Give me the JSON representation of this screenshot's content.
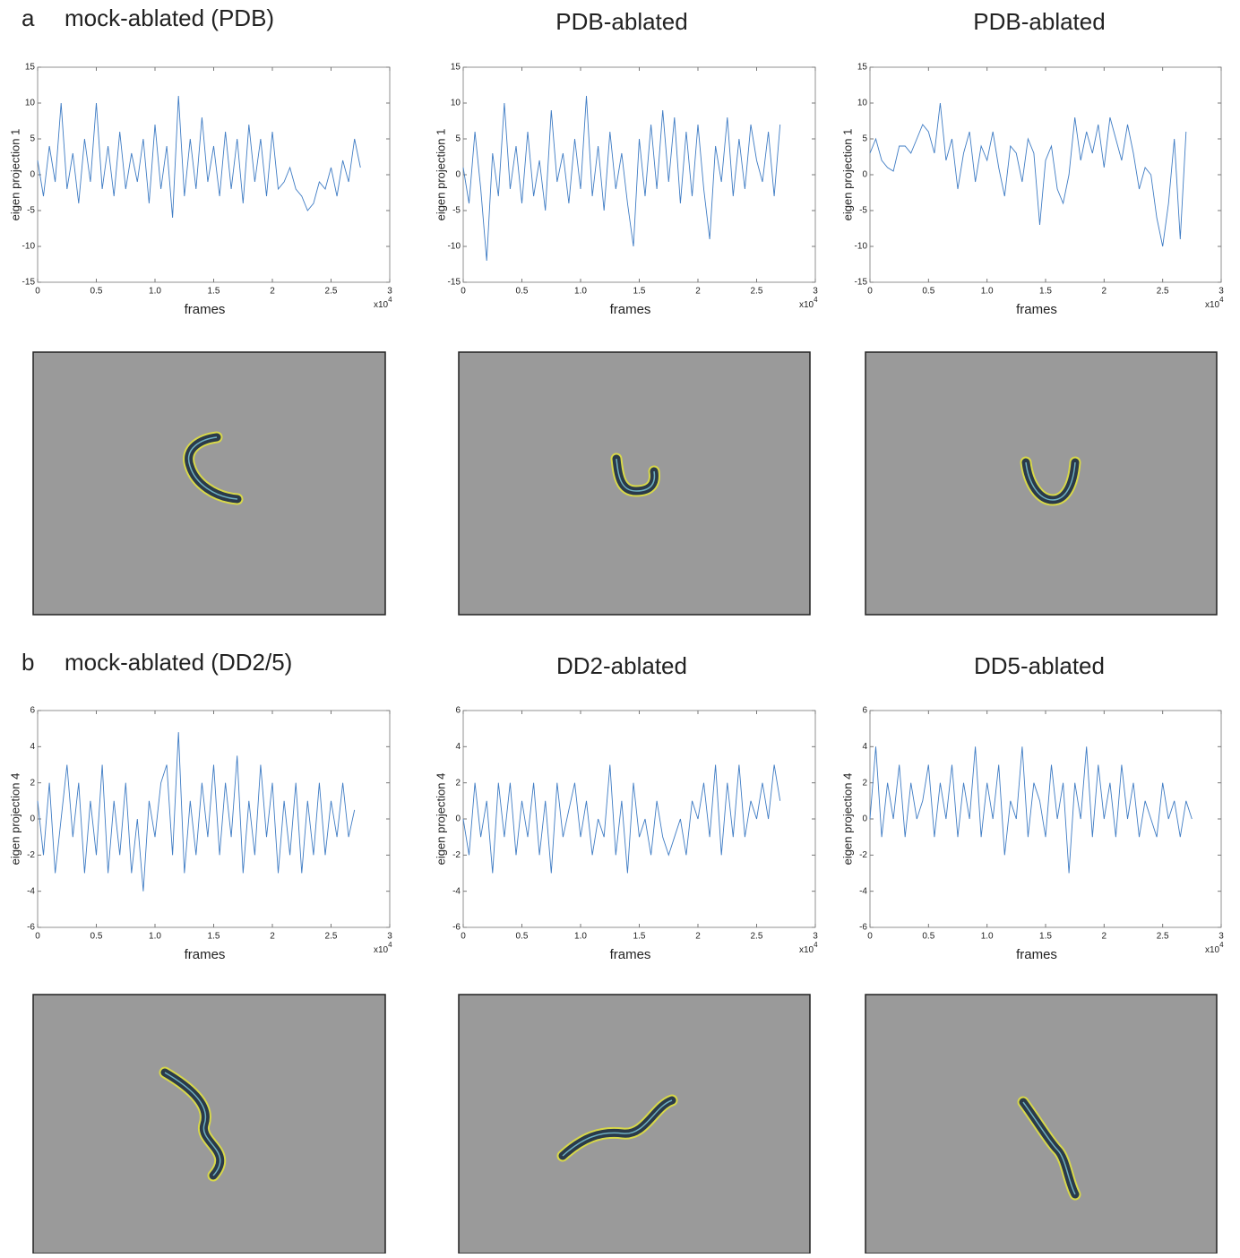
{
  "chart_data": [
    {
      "type": "line",
      "panel_label": "a",
      "title": "mock-ablated (PDB)",
      "ylabel": "eigen projection 1",
      "xlabel": "frames",
      "x_multiplier": "x10",
      "x_multiplier_exponent": "4",
      "color": "#3f7cc4",
      "xlim": [
        0,
        3
      ],
      "ylim": [
        -15,
        15
      ],
      "xticks": [
        0,
        0.5,
        {
          "value": 1,
          "label": "1.0"
        },
        1.5,
        2,
        2.5,
        3
      ],
      "yticks": [
        -15,
        -10,
        -5,
        0,
        5,
        10,
        15
      ],
      "x": [
        0,
        0.05,
        0.1,
        0.15,
        0.2,
        0.25,
        0.3,
        0.35,
        0.4,
        0.45,
        0.5,
        0.55,
        0.6,
        0.65,
        0.7,
        0.75,
        0.8,
        0.85,
        0.9,
        0.95,
        1,
        1.05,
        1.1,
        1.15,
        1.2,
        1.25,
        1.3,
        1.35,
        1.4,
        1.45,
        1.5,
        1.55,
        1.6,
        1.65,
        1.7,
        1.75,
        1.8,
        1.85,
        1.9,
        1.95,
        2,
        2.05,
        2.1,
        2.15,
        2.2,
        2.25,
        2.3,
        2.35,
        2.4,
        2.45,
        2.5,
        2.55,
        2.6,
        2.65,
        2.7,
        2.75
      ],
      "values": [
        2,
        -3,
        4,
        -1,
        10,
        -2,
        3,
        -4,
        5,
        -1,
        10,
        -2,
        4,
        -3,
        6,
        -2,
        3,
        -1,
        5,
        -4,
        7,
        -2,
        4,
        -6,
        11,
        -3,
        5,
        -2,
        8,
        -1,
        4,
        -3,
        6,
        -2,
        5,
        -4,
        7,
        -1,
        5,
        -3,
        6,
        -2,
        -1,
        1,
        -2,
        -3,
        -5,
        -4,
        -1,
        -2,
        1,
        -3,
        2,
        -1,
        5,
        1
      ]
    },
    {
      "type": "line",
      "title": "PDB-ablated",
      "ylabel": "eigen projection 1",
      "xlabel": "frames",
      "x_multiplier": "x10",
      "x_multiplier_exponent": "4",
      "color": "#3f7cc4",
      "xlim": [
        0,
        3
      ],
      "ylim": [
        -15,
        15
      ],
      "xticks": [
        0,
        0.5,
        {
          "value": 1,
          "label": "1.0"
        },
        1.5,
        2,
        2.5,
        3
      ],
      "yticks": [
        -15,
        -10,
        -5,
        0,
        5,
        10,
        15
      ],
      "x": [
        0,
        0.05,
        0.1,
        0.15,
        0.2,
        0.25,
        0.3,
        0.35,
        0.4,
        0.45,
        0.5,
        0.55,
        0.6,
        0.65,
        0.7,
        0.75,
        0.8,
        0.85,
        0.9,
        0.95,
        1,
        1.05,
        1.1,
        1.15,
        1.2,
        1.25,
        1.3,
        1.35,
        1.4,
        1.45,
        1.5,
        1.55,
        1.6,
        1.65,
        1.7,
        1.75,
        1.8,
        1.85,
        1.9,
        1.95,
        2,
        2.05,
        2.1,
        2.15,
        2.2,
        2.25,
        2.3,
        2.35,
        2.4,
        2.45,
        2.5,
        2.55,
        2.6,
        2.65,
        2.7
      ],
      "values": [
        1,
        -4,
        6,
        -2,
        -12,
        3,
        -3,
        10,
        -2,
        4,
        -4,
        6,
        -3,
        2,
        -5,
        9,
        -1,
        3,
        -4,
        5,
        -2,
        11,
        -3,
        4,
        -5,
        6,
        -2,
        3,
        -4,
        -10,
        5,
        -3,
        7,
        -2,
        9,
        -1,
        8,
        -4,
        6,
        -3,
        7,
        -2,
        -9,
        4,
        -1,
        8,
        -3,
        5,
        -2,
        7,
        2,
        -1,
        6,
        -3,
        7
      ]
    },
    {
      "type": "line",
      "title": "PDB-ablated",
      "ylabel": "eigen projection 1",
      "xlabel": "frames",
      "x_multiplier": "x10",
      "x_multiplier_exponent": "4",
      "color": "#3f7cc4",
      "xlim": [
        0,
        3
      ],
      "ylim": [
        -15,
        15
      ],
      "xticks": [
        0,
        0.5,
        {
          "value": 1,
          "label": "1.0"
        },
        1.5,
        2,
        2.5,
        3
      ],
      "yticks": [
        -15,
        -10,
        -5,
        0,
        5,
        10,
        15
      ],
      "x": [
        0,
        0.05,
        0.1,
        0.15,
        0.2,
        0.25,
        0.3,
        0.35,
        0.4,
        0.45,
        0.5,
        0.55,
        0.6,
        0.65,
        0.7,
        0.75,
        0.8,
        0.85,
        0.9,
        0.95,
        1,
        1.05,
        1.1,
        1.15,
        1.2,
        1.25,
        1.3,
        1.35,
        1.4,
        1.45,
        1.5,
        1.55,
        1.6,
        1.65,
        1.7,
        1.75,
        1.8,
        1.85,
        1.9,
        1.95,
        2,
        2.05,
        2.1,
        2.15,
        2.2,
        2.25,
        2.3,
        2.35,
        2.4,
        2.45,
        2.5,
        2.55,
        2.6,
        2.65,
        2.7
      ],
      "values": [
        3,
        5,
        2,
        1,
        0.5,
        4,
        4,
        3,
        5,
        7,
        6,
        3,
        10,
        2,
        5,
        -2,
        3,
        6,
        -1,
        4,
        2,
        6,
        1,
        -3,
        4,
        3,
        -1,
        5,
        3,
        -7,
        2,
        4,
        -2,
        -4,
        0,
        8,
        2,
        6,
        3,
        7,
        1,
        8,
        5,
        2,
        7,
        3,
        -2,
        1,
        0,
        -6,
        -10,
        -4,
        5,
        -9,
        6
      ]
    },
    {
      "type": "line",
      "panel_label": "b",
      "title": "mock-ablated (DD2/5)",
      "ylabel": "eigen projection 4",
      "xlabel": "frames",
      "x_multiplier": "x10",
      "x_multiplier_exponent": "4",
      "color": "#3f7cc4",
      "xlim": [
        0,
        3
      ],
      "ylim": [
        -6,
        6
      ],
      "xticks": [
        0,
        0.5,
        {
          "value": 1,
          "label": "1.0"
        },
        1.5,
        2,
        2.5,
        3
      ],
      "yticks": [
        -6,
        -4,
        -2,
        0,
        2,
        4,
        6
      ],
      "x": [
        0,
        0.05,
        0.1,
        0.15,
        0.2,
        0.25,
        0.3,
        0.35,
        0.4,
        0.45,
        0.5,
        0.55,
        0.6,
        0.65,
        0.7,
        0.75,
        0.8,
        0.85,
        0.9,
        0.95,
        1,
        1.05,
        1.1,
        1.15,
        1.2,
        1.25,
        1.3,
        1.35,
        1.4,
        1.45,
        1.5,
        1.55,
        1.6,
        1.65,
        1.7,
        1.75,
        1.8,
        1.85,
        1.9,
        1.95,
        2,
        2.05,
        2.1,
        2.15,
        2.2,
        2.25,
        2.3,
        2.35,
        2.4,
        2.45,
        2.5,
        2.55,
        2.6,
        2.65,
        2.7
      ],
      "values": [
        1,
        -2,
        2,
        -3,
        0,
        3,
        -1,
        2,
        -3,
        1,
        -2,
        3,
        -3,
        1,
        -2,
        2,
        -3,
        0,
        -4,
        1,
        -1,
        2,
        3,
        -2,
        4.8,
        -3,
        1,
        -2,
        2,
        -1,
        3,
        -2,
        2,
        -1,
        3.5,
        -3,
        1,
        -2,
        3,
        -1,
        2,
        -3,
        1,
        -2,
        2,
        -3,
        1,
        -2,
        2,
        -2,
        1,
        -1,
        2,
        -1,
        0.5
      ]
    },
    {
      "type": "line",
      "title": "DD2-ablated",
      "ylabel": "eigen projection 4",
      "xlabel": "frames",
      "x_multiplier": "x10",
      "x_multiplier_exponent": "4",
      "color": "#3f7cc4",
      "xlim": [
        0,
        3
      ],
      "ylim": [
        -6,
        6
      ],
      "xticks": [
        0,
        0.5,
        {
          "value": 1,
          "label": "1.0"
        },
        1.5,
        2,
        2.5,
        3
      ],
      "yticks": [
        -6,
        -4,
        -2,
        0,
        2,
        4,
        6
      ],
      "x": [
        0,
        0.05,
        0.1,
        0.15,
        0.2,
        0.25,
        0.3,
        0.35,
        0.4,
        0.45,
        0.5,
        0.55,
        0.6,
        0.65,
        0.7,
        0.75,
        0.8,
        0.85,
        0.9,
        0.95,
        1,
        1.05,
        1.1,
        1.15,
        1.2,
        1.25,
        1.3,
        1.35,
        1.4,
        1.45,
        1.5,
        1.55,
        1.6,
        1.65,
        1.7,
        1.75,
        1.8,
        1.85,
        1.9,
        1.95,
        2,
        2.05,
        2.1,
        2.15,
        2.2,
        2.25,
        2.3,
        2.35,
        2.4,
        2.45,
        2.5,
        2.55,
        2.6,
        2.65,
        2.7
      ],
      "values": [
        0,
        -2,
        2,
        -1,
        1,
        -3,
        2,
        -1,
        2,
        -2,
        1,
        -1,
        2,
        -2,
        1,
        -3,
        2,
        -1,
        0.5,
        2,
        -1,
        1,
        -2,
        0,
        -1,
        3,
        -2,
        1,
        -3,
        2,
        -1,
        0,
        -2,
        1,
        -1,
        -2,
        -1,
        0,
        -2,
        1,
        0,
        2,
        -1,
        3,
        -2,
        2,
        -1,
        3,
        -1,
        1,
        0,
        2,
        0,
        3,
        1
      ]
    },
    {
      "type": "line",
      "title": "DD5-ablated",
      "ylabel": "eigen projection 4",
      "xlabel": "frames",
      "x_multiplier": "x10",
      "x_multiplier_exponent": "4",
      "color": "#3f7cc4",
      "xlim": [
        0,
        3
      ],
      "ylim": [
        -6,
        6
      ],
      "xticks": [
        0,
        0.5,
        {
          "value": 1,
          "label": "1.0"
        },
        1.5,
        2,
        2.5,
        3
      ],
      "yticks": [
        -6,
        -4,
        -2,
        0,
        2,
        4,
        6
      ],
      "x": [
        0,
        0.05,
        0.1,
        0.15,
        0.2,
        0.25,
        0.3,
        0.35,
        0.4,
        0.45,
        0.5,
        0.55,
        0.6,
        0.65,
        0.7,
        0.75,
        0.8,
        0.85,
        0.9,
        0.95,
        1,
        1.05,
        1.1,
        1.15,
        1.2,
        1.25,
        1.3,
        1.35,
        1.4,
        1.45,
        1.5,
        1.55,
        1.6,
        1.65,
        1.7,
        1.75,
        1.8,
        1.85,
        1.9,
        1.95,
        2,
        2.05,
        2.1,
        2.15,
        2.2,
        2.25,
        2.3,
        2.35,
        2.4,
        2.45,
        2.5,
        2.55,
        2.6,
        2.65,
        2.7,
        2.75
      ],
      "values": [
        0,
        4,
        -1,
        2,
        0,
        3,
        -1,
        2,
        0,
        1,
        3,
        -1,
        2,
        0,
        3,
        -1,
        2,
        0,
        4,
        -1,
        2,
        0,
        3,
        -2,
        1,
        0,
        4,
        -1,
        2,
        1,
        -1,
        3,
        0,
        2,
        -3,
        2,
        0,
        4,
        -1,
        3,
        0,
        2,
        -1,
        3,
        0,
        2,
        -1,
        1,
        0,
        -1,
        2,
        0,
        1,
        -1,
        1,
        0
      ]
    }
  ]
}
